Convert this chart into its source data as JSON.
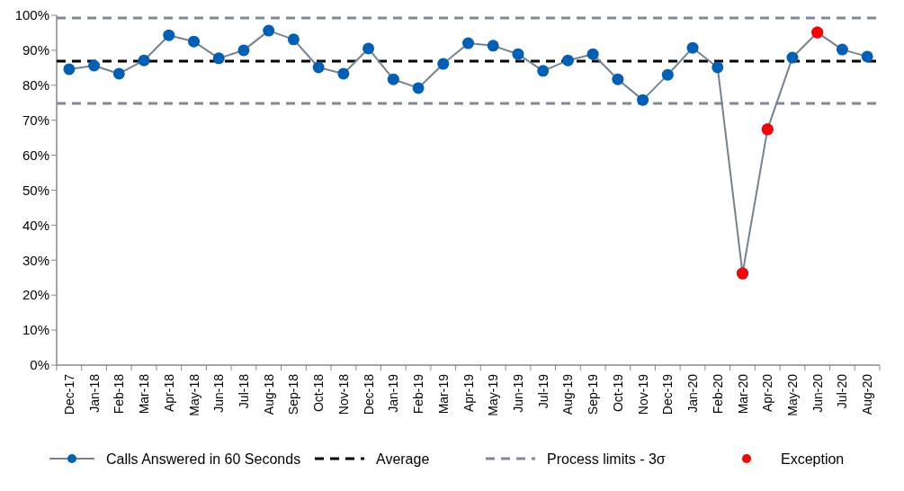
{
  "chart_data": {
    "type": "line",
    "categories": [
      "Dec-17",
      "Jan-18",
      "Feb-18",
      "Mar-18",
      "Apr-18",
      "May-18",
      "Jun-18",
      "Jul-18",
      "Aug-18",
      "Sep-18",
      "Oct-18",
      "Nov-18",
      "Dec-18",
      "Jan-19",
      "Feb-19",
      "Mar-19",
      "Apr-19",
      "May-19",
      "Jun-19",
      "Jul-19",
      "Aug-19",
      "Sep-19",
      "Oct-19",
      "Nov-19",
      "Dec-19",
      "Jan-20",
      "Feb-20",
      "Mar-20",
      "Apr-20",
      "May-20",
      "Jun-20",
      "Jul-20",
      "Aug-20"
    ],
    "series": [
      {
        "name": "Calls Answered in 60 Seconds",
        "color": "#0060b8",
        "marker": "circle",
        "values": [
          84.6,
          85.6,
          83.3,
          87.1,
          94.3,
          92.5,
          87.7,
          90.0,
          95.6,
          93.1,
          85.1,
          83.3,
          90.5,
          81.7,
          79.2,
          86.1,
          92.0,
          91.3,
          88.9,
          84.1,
          87.1,
          88.9,
          81.7,
          75.8,
          83.0,
          90.7,
          85.1,
          26.2,
          67.4,
          87.9,
          95.1,
          90.2,
          88.2
        ]
      },
      {
        "name": "Exception",
        "color": "#ff0000",
        "type": "scatter",
        "marker": "circle",
        "values": [
          null,
          null,
          null,
          null,
          null,
          null,
          null,
          null,
          null,
          null,
          null,
          null,
          null,
          null,
          null,
          null,
          null,
          null,
          null,
          null,
          null,
          null,
          null,
          null,
          null,
          null,
          null,
          26.2,
          67.4,
          null,
          95.1,
          null,
          null
        ]
      }
    ],
    "ref_lines": [
      {
        "axis": "y",
        "value": 86.9,
        "label": "Average",
        "color": "#000000",
        "line_style": "dashed"
      },
      {
        "axis": "y",
        "value": 99.2,
        "label": "Process limits - 3σ",
        "color": "#7f8a96",
        "line_style": "dashed"
      },
      {
        "axis": "y",
        "value": 74.8,
        "color": "#7f8a96",
        "line_style": "dashed"
      }
    ],
    "ylim": [
      0,
      100
    ],
    "yticks": [
      {
        "value": 0,
        "label": "0%"
      },
      {
        "value": 10,
        "label": "10%"
      },
      {
        "value": 20,
        "label": "20%"
      },
      {
        "value": 30,
        "label": "30%"
      },
      {
        "value": 40,
        "label": "40%"
      },
      {
        "value": 50,
        "label": "50%"
      },
      {
        "value": 60,
        "label": "60%"
      },
      {
        "value": 70,
        "label": "70%"
      },
      {
        "value": 80,
        "label": "80%"
      },
      {
        "value": 90,
        "label": "90%"
      },
      {
        "value": 100,
        "label": "100%"
      }
    ],
    "grid": false,
    "legend": "bottom"
  }
}
